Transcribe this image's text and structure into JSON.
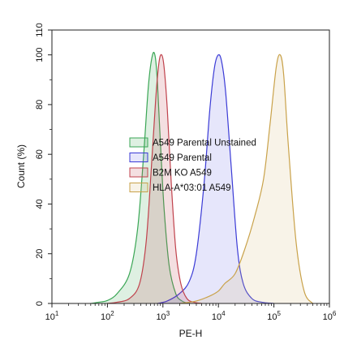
{
  "chart_data": {
    "type": "area",
    "title": "",
    "xlabel": "PE-H",
    "ylabel": "Count (%)",
    "xscale": "log",
    "xlim": [
      10,
      1000000
    ],
    "ylim": [
      0,
      110
    ],
    "grid": false,
    "legend_position": "center-left",
    "x_ticks": [
      {
        "value": 10,
        "base": "10",
        "exp": "1"
      },
      {
        "value": 100,
        "base": "10",
        "exp": "2"
      },
      {
        "value": 1000,
        "base": "10",
        "exp": "3"
      },
      {
        "value": 10000,
        "base": "10",
        "exp": "4"
      },
      {
        "value": 100000,
        "base": "10",
        "exp": "5"
      },
      {
        "value": 1000000,
        "base": "10",
        "exp": "6"
      }
    ],
    "y_ticks": [
      "0",
      "20",
      "40",
      "60",
      "80",
      "100",
      "110"
    ],
    "series": [
      {
        "name": "A549 Parental Unstained",
        "stroke": "#3aa655",
        "fill": "#3aa655",
        "x": [
          50,
          70,
          100,
          150,
          250,
          350,
          450,
          550,
          650,
          730,
          800,
          900,
          1050,
          1300,
          1700,
          2200,
          3000
        ],
        "y": [
          0,
          0.5,
          1.2,
          4,
          12,
          30,
          60,
          88,
          100,
          99,
          88,
          65,
          38,
          15,
          4,
          1,
          0
        ]
      },
      {
        "name": "A549 Parental",
        "stroke": "#3b3bd6",
        "fill": "#6a6ae8",
        "x": [
          800,
          1200,
          2000,
          3000,
          4000,
          5500,
          7000,
          8500,
          10000,
          11500,
          13500,
          17000,
          22000,
          28000,
          40000,
          60000,
          100000
        ],
        "y": [
          0,
          1,
          4,
          9,
          20,
          48,
          78,
          95,
          100,
          97,
          85,
          55,
          22,
          8,
          2,
          0.5,
          0
        ]
      },
      {
        "name": "B2M KO A549",
        "stroke": "#c0424c",
        "fill": "#c0424c",
        "x": [
          100,
          150,
          250,
          380,
          500,
          620,
          740,
          850,
          950,
          1050,
          1200,
          1400,
          1700,
          2100,
          2700,
          3600,
          5000
        ],
        "y": [
          0,
          0.5,
          2,
          8,
          25,
          55,
          82,
          97,
          100,
          95,
          78,
          50,
          22,
          8,
          2,
          0.5,
          0
        ]
      },
      {
        "name": "HLA-A*03:01 A549",
        "stroke": "#c9a24a",
        "fill": "#d6b879",
        "x": [
          2000,
          4000,
          7000,
          10000,
          13000,
          20000,
          30000,
          45000,
          65000,
          85000,
          110000,
          130000,
          150000,
          180000,
          250000,
          350000,
          500000
        ],
        "y": [
          0,
          1,
          3,
          5,
          8,
          12,
          22,
          35,
          50,
          72,
          95,
          100,
          92,
          65,
          25,
          5,
          0
        ]
      }
    ]
  }
}
